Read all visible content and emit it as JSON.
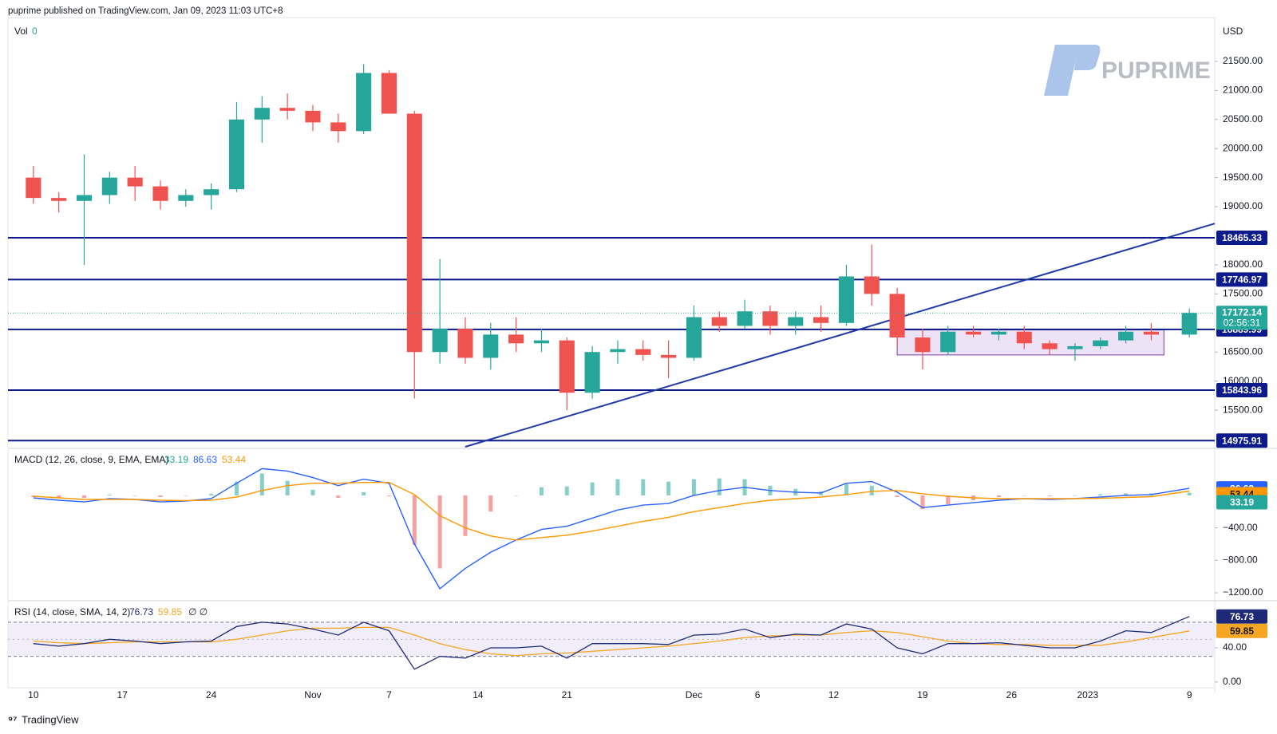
{
  "header": "puprime published on TradingView.com, Jan 09, 2023 11:03 UTC+8",
  "logo": "PUPRIME",
  "footer": "TradingView",
  "chart_data": [
    {
      "type": "candlestick",
      "axis_label": "USD",
      "volume_label": "Vol",
      "volume_value": 0,
      "x": [
        "2022-10-10",
        "2022-10-12",
        "2022-10-14",
        "2022-10-16",
        "2022-10-18",
        "2022-10-20",
        "2022-10-22",
        "2022-10-24",
        "2022-10-26",
        "2022-10-28",
        "2022-10-30",
        "2022-11-01",
        "2022-11-03",
        "2022-11-05",
        "2022-11-07",
        "2022-11-09",
        "2022-11-11",
        "2022-11-13",
        "2022-11-15",
        "2022-11-17",
        "2022-11-19",
        "2022-11-21",
        "2022-11-23",
        "2022-11-25",
        "2022-11-27",
        "2022-11-29",
        "2022-12-01",
        "2022-12-03",
        "2022-12-05",
        "2022-12-07",
        "2022-12-09",
        "2022-12-11",
        "2022-12-13",
        "2022-12-15",
        "2022-12-17",
        "2022-12-19",
        "2022-12-21",
        "2022-12-23",
        "2022-12-25",
        "2022-12-27",
        "2022-12-29",
        "2022-12-31",
        "2023-01-02",
        "2023-01-04",
        "2023-01-06",
        "2023-01-09"
      ],
      "open": [
        19500,
        19150,
        19100,
        19200,
        19500,
        19350,
        19100,
        19200,
        19300,
        20500,
        20700,
        20650,
        20450,
        20300,
        21300,
        20600,
        16500,
        16900,
        16400,
        16800,
        16650,
        16700,
        15800,
        16500,
        16550,
        16450,
        16400,
        17100,
        16950,
        17200,
        16950,
        17100,
        17000,
        17800,
        17500,
        16750,
        16500,
        16850,
        16800,
        16850,
        16650,
        16550,
        16600,
        16700,
        16850,
        16800
      ],
      "high": [
        19700,
        19250,
        19900,
        19600,
        19700,
        19450,
        19300,
        19400,
        20800,
        20900,
        20950,
        20750,
        20600,
        21450,
        21350,
        20650,
        18100,
        17100,
        17000,
        17100,
        16900,
        16750,
        16600,
        16700,
        16700,
        16700,
        17300,
        17200,
        17400,
        17300,
        17200,
        17300,
        18000,
        18350,
        17600,
        16900,
        16950,
        16950,
        16900,
        16950,
        16700,
        16650,
        16750,
        16950,
        17000,
        17250
      ],
      "low": [
        19050,
        18900,
        18000,
        19050,
        19100,
        18950,
        19000,
        18950,
        19250,
        20100,
        20500,
        20300,
        20100,
        20250,
        20600,
        15700,
        16300,
        16300,
        16200,
        16500,
        16500,
        15500,
        15700,
        16300,
        16350,
        16050,
        16350,
        16850,
        16900,
        16800,
        16800,
        16850,
        16950,
        17300,
        16600,
        16200,
        16450,
        16750,
        16700,
        16550,
        16450,
        16350,
        16550,
        16650,
        16700,
        16750
      ],
      "close": [
        19150,
        19100,
        19200,
        19500,
        19350,
        19100,
        19200,
        19300,
        20500,
        20700,
        20650,
        20450,
        20300,
        21300,
        20600,
        16500,
        16900,
        16400,
        16800,
        16650,
        16700,
        15800,
        16500,
        16550,
        16450,
        16400,
        17100,
        16950,
        17200,
        16950,
        17100,
        17000,
        17800,
        17500,
        16750,
        16500,
        16850,
        16800,
        16850,
        16650,
        16550,
        16600,
        16700,
        16850,
        16800,
        17172.14
      ],
      "up_color": "#26a69a",
      "down_color": "#ef5350",
      "xlim": [
        "2022-10-08",
        "2023-01-11"
      ],
      "xticks": [
        {
          "value": "2022-10-10",
          "label": "10"
        },
        {
          "value": "2022-10-17",
          "label": "17"
        },
        {
          "value": "2022-10-24",
          "label": "24"
        },
        {
          "value": "2022-11-01",
          "label": "Nov"
        },
        {
          "value": "2022-11-07",
          "label": "7"
        },
        {
          "value": "2022-11-14",
          "label": "14"
        },
        {
          "value": "2022-11-21",
          "label": "21"
        },
        {
          "value": "2022-12-01",
          "label": "Dec"
        },
        {
          "value": "2022-12-06",
          "label": "6"
        },
        {
          "value": "2022-12-12",
          "label": "12"
        },
        {
          "value": "2022-12-19",
          "label": "19"
        },
        {
          "value": "2022-12-26",
          "label": "26"
        },
        {
          "value": "2023-01-01",
          "label": "2023"
        },
        {
          "value": "2023-01-09",
          "label": "9"
        }
      ],
      "ylim": [
        14870,
        22130
      ],
      "yticks": [
        {
          "value": 15500,
          "label": "15500.00"
        },
        {
          "value": 16000,
          "label": "16000.00"
        },
        {
          "value": 16500,
          "label": "16500.00"
        },
        {
          "value": 17500,
          "label": "17500.00"
        },
        {
          "value": 18000,
          "label": "18000.00"
        },
        {
          "value": 19000,
          "label": "19000.00"
        },
        {
          "value": 19500,
          "label": "19500.00"
        },
        {
          "value": 20000,
          "label": "20000.00"
        },
        {
          "value": 20500,
          "label": "20500.00"
        },
        {
          "value": 21000,
          "label": "21000.00"
        },
        {
          "value": 21500,
          "label": "21500.00"
        }
      ],
      "levels": {
        "values": [
          18465.33,
          17746.97,
          16889.99,
          15843.96,
          14975.91
        ],
        "color": "#0d1a8c"
      },
      "trendline": {
        "x": [
          "2022-11-13",
          "2023-01-11"
        ],
        "y": [
          14870,
          18710
        ],
        "color": "#1f3aa8"
      },
      "range_box": {
        "x": [
          "2022-12-17",
          "2023-01-07"
        ],
        "y": [
          16450,
          16880
        ],
        "color": "#e6d5f2"
      },
      "countdown": "02:56:31"
    },
    {
      "type": "macd",
      "title": "MACD (12, 26, close, 9, EMA, EMA)",
      "ylim": [
        -1240,
        560
      ],
      "yticks": [
        {
          "value": -400,
          "label": "−400.00"
        },
        {
          "value": -800,
          "label": "−800.00"
        },
        {
          "value": -1200,
          "label": "−1200.00"
        }
      ],
      "series": [
        {
          "color": "#2962ff",
          "values": [
            -30,
            -60,
            -80,
            -40,
            -50,
            -80,
            -70,
            -40,
            150,
            330,
            300,
            220,
            120,
            200,
            150,
            -600,
            -1150,
            -900,
            -700,
            -550,
            -420,
            -380,
            -280,
            -180,
            -120,
            -100,
            0,
            60,
            100,
            60,
            40,
            30,
            150,
            170,
            40,
            -150,
            -120,
            -90,
            -60,
            -40,
            -50,
            -40,
            -20,
            0,
            10,
            86.63
          ]
        },
        {
          "color": "#ff9800",
          "values": [
            -10,
            -30,
            -50,
            -50,
            -50,
            -60,
            -65,
            -60,
            -20,
            60,
            120,
            150,
            150,
            160,
            160,
            10,
            -250,
            -400,
            -500,
            -550,
            -520,
            -490,
            -440,
            -380,
            -320,
            -270,
            -200,
            -150,
            -100,
            -60,
            -40,
            -20,
            10,
            50,
            60,
            20,
            -10,
            -30,
            -40,
            -40,
            -40,
            -40,
            -35,
            -25,
            -15,
            53.44
          ]
        }
      ],
      "histogram": {
        "up_color": "#26a69a",
        "down_color": "#ef5350",
        "values": [
          -20,
          -30,
          -30,
          10,
          0,
          -20,
          -5,
          20,
          170,
          270,
          180,
          70,
          -30,
          40,
          -10,
          -610,
          -900,
          -500,
          -200,
          0,
          100,
          110,
          160,
          200,
          200,
          170,
          200,
          210,
          200,
          120,
          80,
          50,
          140,
          120,
          -20,
          -170,
          -110,
          -60,
          -20,
          0,
          -10,
          0,
          15,
          25,
          25,
          33.19
        ]
      }
    },
    {
      "type": "rsi",
      "title": "RSI (14, close, SMA, 14, 2)",
      "extra": "∅ ∅",
      "ylim": [
        -6.7,
        93.3
      ],
      "yticks": [
        {
          "value": 0,
          "label": "0.00"
        },
        {
          "value": 40,
          "label": "40.00"
        }
      ],
      "bands": [
        30,
        50,
        70
      ],
      "band_color": "#ede7f6",
      "series": [
        {
          "color": "#1e2a78",
          "values": [
            45,
            42,
            45,
            50,
            48,
            45,
            47,
            48,
            65,
            70,
            68,
            62,
            55,
            70,
            60,
            15,
            30,
            28,
            40,
            40,
            42,
            28,
            45,
            45,
            45,
            44,
            55,
            56,
            62,
            52,
            56,
            55,
            68,
            62,
            40,
            33,
            45,
            45,
            46,
            43,
            40,
            40,
            48,
            60,
            58,
            76.73
          ]
        },
        {
          "color": "#f5a623",
          "values": [
            48,
            46,
            45,
            46,
            47,
            47,
            47,
            47,
            50,
            55,
            60,
            63,
            63,
            64,
            64,
            55,
            45,
            38,
            33,
            31,
            33,
            34,
            36,
            38,
            40,
            42,
            45,
            48,
            52,
            54,
            55,
            55,
            58,
            60,
            58,
            53,
            48,
            45,
            44,
            44,
            43,
            43,
            43,
            47,
            52,
            59.85
          ]
        }
      ]
    }
  ]
}
